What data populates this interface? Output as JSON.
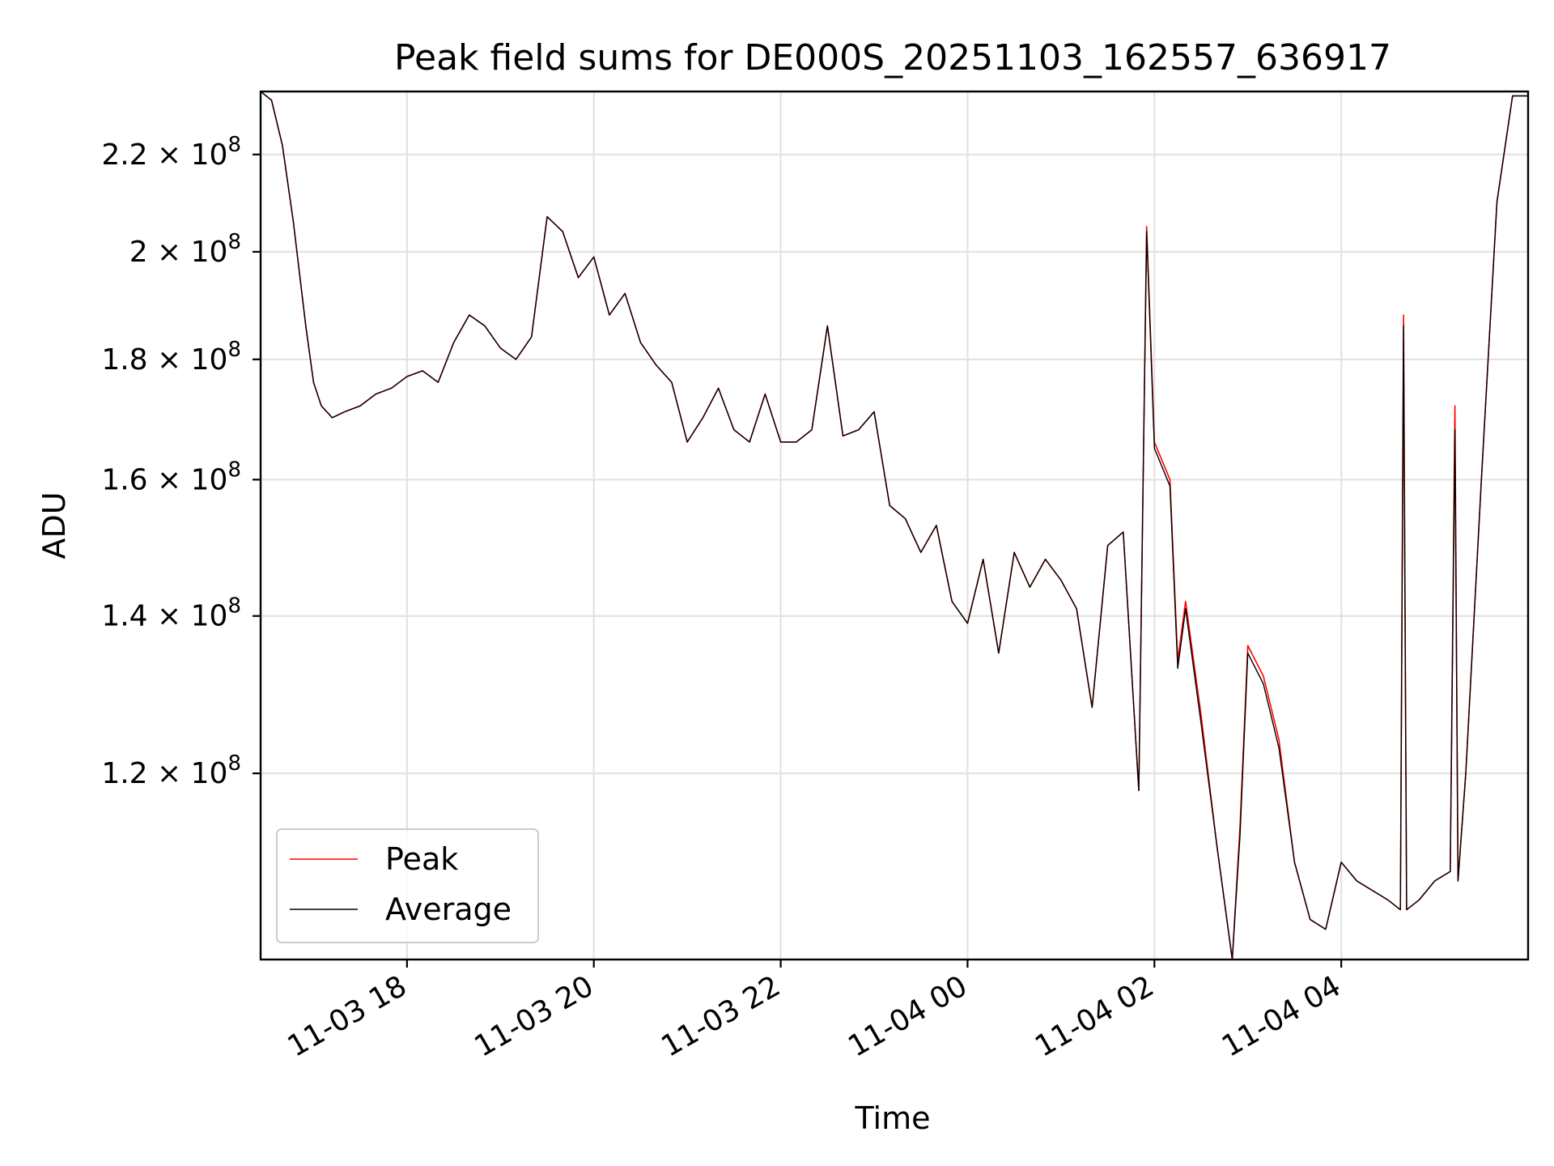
{
  "chart_data": {
    "type": "line",
    "title": "Peak field sums for DE000S_20251103_162557_636917",
    "xlabel": "Time",
    "ylabel": "ADU",
    "x_type": "time",
    "xlim": [
      "2025-11-03 16:26",
      "2025-11-04 06:00"
    ],
    "ylim": [
      100000000,
      234000000
    ],
    "yscale": "log",
    "grid": true,
    "legend_position": "lower-left",
    "x_ticks": [
      "11-03 18",
      "11-03 20",
      "11-03 22",
      "11-04 00",
      "11-04 02",
      "11-04 04"
    ],
    "y_ticks": [
      {
        "value": 120000000,
        "mantissa": "1.2",
        "exponent": "8"
      },
      {
        "value": 140000000,
        "mantissa": "1.4",
        "exponent": "8"
      },
      {
        "value": 160000000,
        "mantissa": "1.6",
        "exponent": "8"
      },
      {
        "value": 180000000,
        "mantissa": "1.8",
        "exponent": "8"
      },
      {
        "value": 200000000,
        "mantissa": "2",
        "exponent": "8"
      },
      {
        "value": 220000000,
        "mantissa": "2.2",
        "exponent": "8"
      }
    ],
    "series": [
      {
        "name": "Peak",
        "color": "#ff0000"
      },
      {
        "name": "Average",
        "color": "#000000"
      }
    ],
    "x": [
      "2025-11-03 16:26",
      "2025-11-03 16:33",
      "2025-11-03 16:40",
      "2025-11-03 16:47",
      "2025-11-03 16:55",
      "2025-11-03 17:00",
      "2025-11-03 17:05",
      "2025-11-03 17:12",
      "2025-11-03 17:20",
      "2025-11-03 17:30",
      "2025-11-03 17:40",
      "2025-11-03 17:50",
      "2025-11-03 18:00",
      "2025-11-03 18:10",
      "2025-11-03 18:20",
      "2025-11-03 18:30",
      "2025-11-03 18:40",
      "2025-11-03 18:50",
      "2025-11-03 19:00",
      "2025-11-03 19:10",
      "2025-11-03 19:20",
      "2025-11-03 19:30",
      "2025-11-03 19:40",
      "2025-11-03 19:50",
      "2025-11-03 20:00",
      "2025-11-03 20:10",
      "2025-11-03 20:20",
      "2025-11-03 20:30",
      "2025-11-03 20:40",
      "2025-11-03 20:50",
      "2025-11-03 21:00",
      "2025-11-03 21:10",
      "2025-11-03 21:20",
      "2025-11-03 21:30",
      "2025-11-03 21:40",
      "2025-11-03 21:50",
      "2025-11-03 22:00",
      "2025-11-03 22:10",
      "2025-11-03 22:20",
      "2025-11-03 22:30",
      "2025-11-03 22:40",
      "2025-11-03 22:50",
      "2025-11-03 23:00",
      "2025-11-03 23:10",
      "2025-11-03 23:20",
      "2025-11-03 23:30",
      "2025-11-03 23:40",
      "2025-11-03 23:50",
      "2025-11-04 00:00",
      "2025-11-04 00:10",
      "2025-11-04 00:20",
      "2025-11-04 00:30",
      "2025-11-04 00:40",
      "2025-11-04 00:50",
      "2025-11-04 01:00",
      "2025-11-04 01:10",
      "2025-11-04 01:20",
      "2025-11-04 01:30",
      "2025-11-04 01:40",
      "2025-11-04 01:50",
      "2025-11-04 01:55",
      "2025-11-04 02:00",
      "2025-11-04 02:10",
      "2025-11-04 02:15",
      "2025-11-04 02:20",
      "2025-11-04 02:30",
      "2025-11-04 02:40",
      "2025-11-04 02:50",
      "2025-11-04 02:55",
      "2025-11-04 03:00",
      "2025-11-04 03:10",
      "2025-11-04 03:20",
      "2025-11-04 03:30",
      "2025-11-04 03:40",
      "2025-11-04 03:50",
      "2025-11-04 04:00",
      "2025-11-04 04:10",
      "2025-11-04 04:20",
      "2025-11-04 04:30",
      "2025-11-04 04:38",
      "2025-11-04 04:40",
      "2025-11-04 04:42",
      "2025-11-04 04:50",
      "2025-11-04 05:00",
      "2025-11-04 05:10",
      "2025-11-04 05:13",
      "2025-11-04 05:15",
      "2025-11-04 05:20",
      "2025-11-04 05:30",
      "2025-11-04 05:40",
      "2025-11-04 05:50",
      "2025-11-04 06:00"
    ],
    "peak": [
      234000000,
      232000000,
      222000000,
      206000000,
      186000000,
      176000000,
      172000000,
      170000000,
      171000000,
      172000000,
      174000000,
      175000000,
      177000000,
      178000000,
      176000000,
      183000000,
      188000000,
      186000000,
      182000000,
      180000000,
      184000000,
      207000000,
      204000000,
      195000000,
      199000000,
      188000000,
      192000000,
      183000000,
      179000000,
      176000000,
      166000000,
      170000000,
      175000000,
      168000000,
      166000000,
      174000000,
      166000000,
      166000000,
      168000000,
      186000000,
      167000000,
      168000000,
      171000000,
      156000000,
      154000000,
      149000000,
      153000000,
      142000000,
      139000000,
      148000000,
      135000000,
      149000000,
      144000000,
      148000000,
      145000000,
      141000000,
      128000000,
      150000000,
      152000000,
      118000000,
      205000000,
      166000000,
      160000000,
      134000000,
      142000000,
      127000000,
      112000000,
      100000000,
      114000000,
      136000000,
      132000000,
      124000000,
      110000000,
      104000000,
      103000000,
      110000000,
      108000000,
      107000000,
      106000000,
      105000000,
      188000000,
      105000000,
      106000000,
      108000000,
      109000000,
      172000000,
      108000000,
      120000000,
      160000000,
      210000000,
      233000000,
      233000000
    ],
    "average": [
      234000000,
      232000000,
      222000000,
      206000000,
      186000000,
      176000000,
      172000000,
      170000000,
      171000000,
      172000000,
      174000000,
      175000000,
      177000000,
      178000000,
      176000000,
      183000000,
      188000000,
      186000000,
      182000000,
      180000000,
      184000000,
      207000000,
      204000000,
      195000000,
      199000000,
      188000000,
      192000000,
      183000000,
      179000000,
      176000000,
      166000000,
      170000000,
      175000000,
      168000000,
      166000000,
      174000000,
      166000000,
      166000000,
      168000000,
      186000000,
      167000000,
      168000000,
      171000000,
      156000000,
      154000000,
      149000000,
      153000000,
      142000000,
      139000000,
      148000000,
      135000000,
      149000000,
      144000000,
      148000000,
      145000000,
      141000000,
      128000000,
      150000000,
      152000000,
      118000000,
      204000000,
      165000000,
      159000000,
      133000000,
      141000000,
      126000000,
      112000000,
      100000000,
      113000000,
      135000000,
      131000000,
      123000000,
      110000000,
      104000000,
      103000000,
      110000000,
      108000000,
      107000000,
      106000000,
      105000000,
      186000000,
      105000000,
      106000000,
      108000000,
      109000000,
      168000000,
      108000000,
      120000000,
      160000000,
      210000000,
      233000000,
      233000000
    ]
  }
}
